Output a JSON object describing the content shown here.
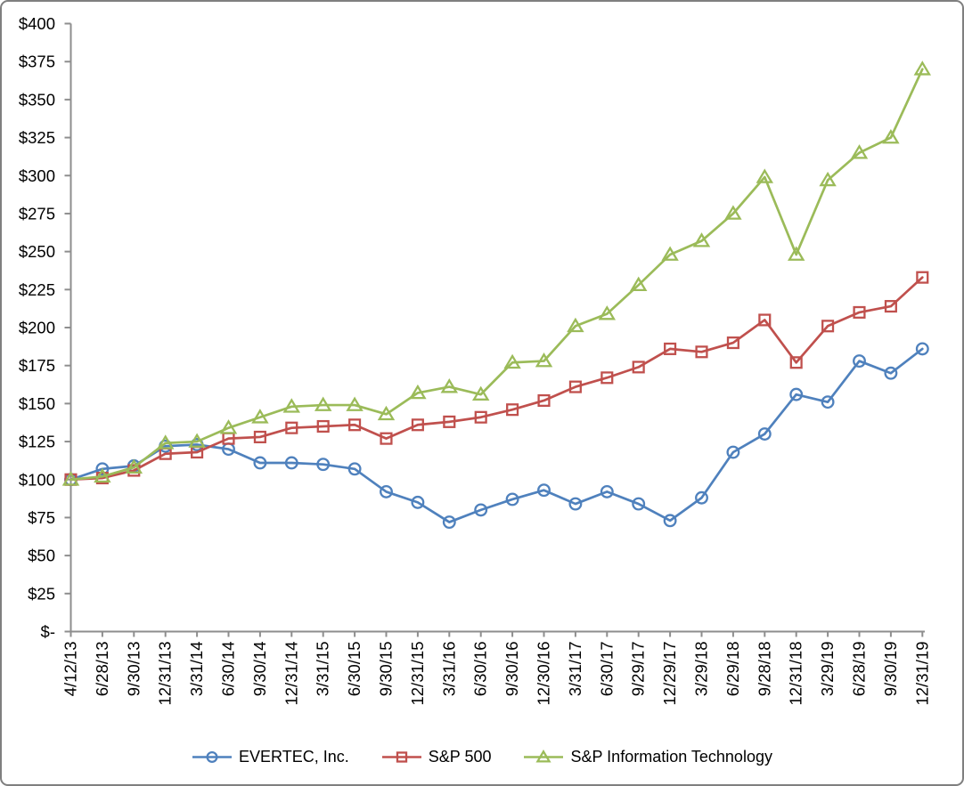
{
  "chart_data": {
    "type": "line",
    "title": "",
    "x_categories": [
      "4/12/13",
      "6/28/13",
      "9/30/13",
      "12/31/13",
      "3/31/14",
      "6/30/14",
      "9/30/14",
      "12/31/14",
      "3/31/15",
      "6/30/15",
      "9/30/15",
      "12/31/15",
      "3/31/16",
      "6/30/16",
      "9/30/16",
      "12/30/16",
      "3/31/17",
      "6/30/17",
      "9/29/17",
      "12/29/17",
      "3/29/18",
      "6/29/18",
      "9/28/18",
      "12/31/18",
      "3/29/19",
      "6/28/19",
      "9/30/19",
      "12/31/19"
    ],
    "y_axis": {
      "min": 0,
      "max": 400,
      "step": 25,
      "tick_labels": [
        "$-",
        "$25",
        "$50",
        "$75",
        "$100",
        "$125",
        "$150",
        "$175",
        "$200",
        "$225",
        "$250",
        "$275",
        "$300",
        "$325",
        "$350",
        "$375",
        "$400"
      ]
    },
    "series": [
      {
        "name": "EVERTEC, Inc.",
        "marker": "circle",
        "color": "#4F81BD",
        "values": [
          100,
          107,
          109,
          122,
          123,
          120,
          111,
          111,
          110,
          107,
          92,
          85,
          72,
          80,
          87,
          93,
          84,
          92,
          84,
          73,
          88,
          118,
          130,
          156,
          151,
          178,
          170,
          186
        ]
      },
      {
        "name": "S&P 500",
        "marker": "square",
        "color": "#C0504D",
        "values": [
          100,
          101,
          106,
          117,
          118,
          127,
          128,
          134,
          135,
          136,
          127,
          136,
          138,
          141,
          146,
          152,
          161,
          167,
          174,
          186,
          184,
          190,
          205,
          177,
          201,
          210,
          214,
          233
        ]
      },
      {
        "name": "S&P Information Technology",
        "marker": "triangle",
        "color": "#9BBB59",
        "values": [
          100,
          102,
          108,
          124,
          125,
          134,
          141,
          148,
          149,
          149,
          143,
          157,
          161,
          156,
          177,
          178,
          201,
          209,
          228,
          248,
          257,
          275,
          299,
          248,
          297,
          315,
          325,
          370
        ]
      }
    ],
    "legend_position": "bottom",
    "grid": false,
    "axis_color": "#8E8E8E",
    "text_color": "#000000",
    "background_color": "#FFFFFF",
    "border_color": "#7F7F7F"
  }
}
